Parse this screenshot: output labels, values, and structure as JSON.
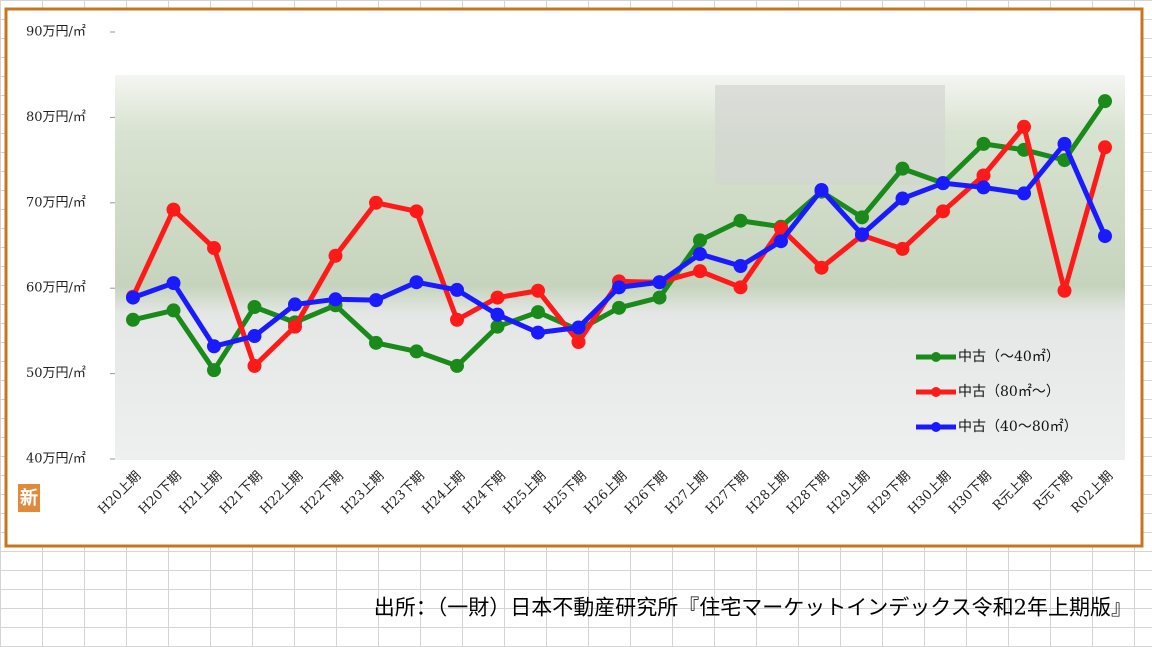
{
  "chart_data": {
    "type": "line",
    "categories": [
      "H20上期",
      "H20下期",
      "H21上期",
      "H21下期",
      "H22上期",
      "H22下期",
      "H23上期",
      "H23下期",
      "H24上期",
      "H24下期",
      "H25上期",
      "H25下期",
      "H26上期",
      "H26下期",
      "H27上期",
      "H27下期",
      "H28上期",
      "H28下期",
      "H29上期",
      "H29下期",
      "H30上期",
      "H30下期",
      "R元上期",
      "R元下期",
      "R02上期"
    ],
    "series": [
      {
        "name": "中古（～40㎡）",
        "color": "#1a8a1a",
        "values": [
          56.3,
          57.4,
          50.4,
          57.8,
          56.0,
          58.0,
          53.6,
          52.6,
          50.9,
          55.5,
          57.2,
          55.1,
          57.7,
          58.9,
          65.6,
          67.9,
          67.2,
          71.3,
          68.3,
          74.0,
          72.3,
          76.9,
          76.2,
          75.0,
          81.9
        ]
      },
      {
        "name": "中古（80㎡～）",
        "color": "#ff1a1a",
        "values": [
          59.0,
          69.2,
          64.7,
          50.9,
          55.5,
          63.8,
          70.0,
          69.0,
          56.3,
          58.9,
          59.7,
          53.7,
          60.8,
          60.7,
          62.0,
          60.1,
          67.0,
          62.4,
          66.2,
          64.6,
          69.0,
          73.2,
          78.9,
          59.7,
          76.5
        ]
      },
      {
        "name": "中古（40～80㎡）",
        "color": "#1a1aff",
        "values": [
          58.9,
          60.6,
          53.2,
          54.4,
          58.1,
          58.7,
          58.6,
          60.7,
          59.8,
          56.9,
          54.8,
          55.4,
          60.1,
          60.7,
          64.0,
          62.6,
          65.5,
          71.5,
          66.3,
          70.5,
          72.3,
          71.8,
          71.1,
          76.9,
          66.1
        ]
      }
    ],
    "ylim": [
      40,
      90
    ],
    "yticks": [
      {
        "value": 40,
        "label": "40万円/㎡"
      },
      {
        "value": 50,
        "label": "50万円/㎡"
      },
      {
        "value": 60,
        "label": "60万円/㎡"
      },
      {
        "value": 70,
        "label": "70万円/㎡"
      },
      {
        "value": 80,
        "label": "80万円/㎡"
      },
      {
        "value": 90,
        "label": "90万円/㎡"
      }
    ],
    "legend": "lower right",
    "grid": false
  },
  "badge": "新",
  "source": "出所：（一財）日本不動産研究所『住宅マーケットインデックス令和2年上期版』"
}
